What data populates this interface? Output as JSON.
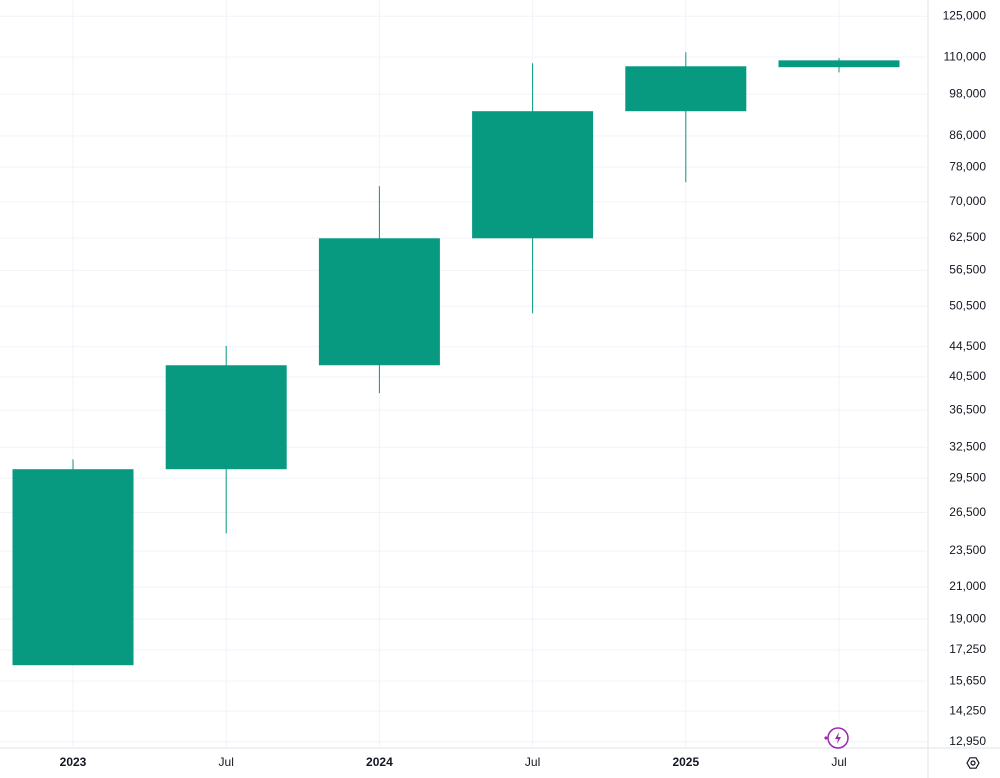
{
  "chart_data": {
    "type": "candlestick",
    "categories": [
      "2023",
      "Jul",
      "2024",
      "Jul",
      "2025",
      "Jul"
    ],
    "open": [
      16450,
      30350,
      42000,
      62450,
      92900,
      106600
    ],
    "high": [
      31300,
      44600,
      73500,
      107900,
      111700,
      109700
    ],
    "low": [
      16450,
      24850,
      38500,
      49400,
      74400,
      104900
    ],
    "close": [
      30350,
      42000,
      62450,
      92900,
      106900,
      108900
    ],
    "color": "#089981",
    "log_scale": true,
    "grid": true,
    "ylim": [
      12700,
      131500
    ],
    "yticks": [
      {
        "value": 12950,
        "label": "12,950"
      },
      {
        "value": 14250,
        "label": "14,250"
      },
      {
        "value": 15650,
        "label": "15,650"
      },
      {
        "value": 17250,
        "label": "17,250"
      },
      {
        "value": 19000,
        "label": "19,000"
      },
      {
        "value": 21000,
        "label": "21,000"
      },
      {
        "value": 23500,
        "label": "23,500"
      },
      {
        "value": 26500,
        "label": "26,500"
      },
      {
        "value": 29500,
        "label": "29,500"
      },
      {
        "value": 32500,
        "label": "32,500"
      },
      {
        "value": 36500,
        "label": "36,500"
      },
      {
        "value": 40500,
        "label": "40,500"
      },
      {
        "value": 44500,
        "label": "44,500"
      },
      {
        "value": 50500,
        "label": "50,500"
      },
      {
        "value": 56500,
        "label": "56,500"
      },
      {
        "value": 62500,
        "label": "62,500"
      },
      {
        "value": 70000,
        "label": "70,000"
      },
      {
        "value": 78000,
        "label": "78,000"
      },
      {
        "value": 86000,
        "label": "86,000"
      },
      {
        "value": 98000,
        "label": "98,000"
      },
      {
        "value": 110000,
        "label": "110,000"
      },
      {
        "value": 125000,
        "label": "125,000"
      }
    ]
  }
}
